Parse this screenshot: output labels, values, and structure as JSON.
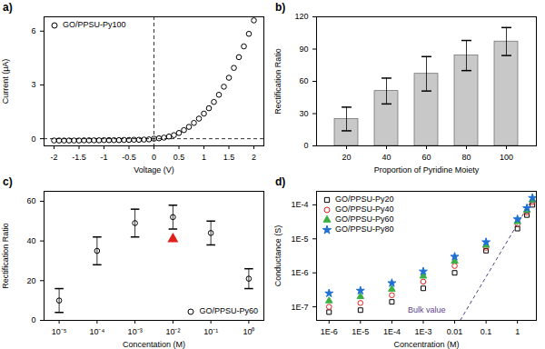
{
  "chart_data": [
    {
      "type": "scatter",
      "title": "a)",
      "x_label": "Voltage (V)",
      "y_label": "Current (μA)",
      "x": [
        -2,
        -1.9,
        -1.8,
        -1.7,
        -1.6,
        -1.5,
        -1.4,
        -1.3,
        -1.2,
        -1.1,
        -1,
        -0.9,
        -0.8,
        -0.7,
        -0.6,
        -0.5,
        -0.4,
        -0.3,
        -0.2,
        -0.1,
        0,
        0.1,
        0.2,
        0.3,
        0.4,
        0.5,
        0.6,
        0.7,
        0.8,
        0.9,
        1,
        1.1,
        1.2,
        1.3,
        1.4,
        1.5,
        1.6,
        1.7,
        1.8,
        1.9,
        2
      ],
      "series": [
        {
          "name": "GO/PPSU-Py100",
          "color": "#000000",
          "marker": "circle",
          "values": [
            -0.1,
            -0.1,
            -0.1,
            -0.1,
            -0.1,
            -0.1,
            -0.09,
            -0.09,
            -0.09,
            -0.09,
            -0.08,
            -0.08,
            -0.08,
            -0.08,
            -0.07,
            -0.07,
            -0.06,
            -0.06,
            -0.05,
            -0.04,
            0,
            0.02,
            0.06,
            0.12,
            0.2,
            0.32,
            0.48,
            0.66,
            0.88,
            1.12,
            1.4,
            1.7,
            2.05,
            2.45,
            2.9,
            3.4,
            3.95,
            4.55,
            5.15,
            5.85,
            6.6
          ]
        }
      ],
      "reference_lines": [
        {
          "axis": "x",
          "value": 0,
          "line_style": "dashed"
        },
        {
          "axis": "y",
          "value": 0,
          "line_style": "dashed"
        }
      ],
      "xlim": [
        -2.2,
        2.2
      ],
      "xticks": [
        -2,
        -1.5,
        -1,
        -0.5,
        0,
        0.5,
        1,
        1.5,
        2
      ],
      "ylim": [
        -0.4,
        6.8
      ],
      "yticks": [
        0,
        3,
        6
      ],
      "legend": "top-left"
    },
    {
      "type": "bar",
      "title": "b)",
      "x_label": "Proportion of Pyridine Moiety",
      "y_label": "Rectification Ratio",
      "categories": [
        "20",
        "40",
        "60",
        "80",
        "100"
      ],
      "values": [
        25,
        51,
        67,
        84,
        97
      ],
      "errors": [
        11,
        12,
        16,
        14,
        13
      ],
      "color": "#c8c8c8",
      "ylim": [
        0,
        120
      ],
      "yticks": [
        0,
        30,
        60,
        90,
        120
      ]
    },
    {
      "type": "scatter",
      "title": "c)",
      "x_label": "Concentation (M)",
      "y_label": "Rectification Ratio",
      "log": "x",
      "x": [
        1e-05,
        0.0001,
        0.001,
        0.01,
        0.1,
        1
      ],
      "series": [
        {
          "name": "GO/PPSU-Py60",
          "color": "#000000",
          "marker": "circle",
          "values": [
            10,
            35,
            49,
            52,
            44,
            21
          ],
          "errors": [
            6,
            7,
            7,
            6,
            6,
            5
          ]
        }
      ],
      "highlight": {
        "x": 0.01,
        "y": 41,
        "color": "#e0201b",
        "marker": "triangle"
      },
      "xlim": [
        4e-06,
        2.5
      ],
      "xticks": [
        {
          "value": 1e-05,
          "label": "10⁻⁵"
        },
        {
          "value": 0.0001,
          "label": "10⁻⁴"
        },
        {
          "value": 0.001,
          "label": "10⁻³"
        },
        {
          "value": 0.01,
          "label": "10⁻²"
        },
        {
          "value": 0.1,
          "label": "10⁻¹"
        },
        {
          "value": 1,
          "label": "10⁰"
        }
      ],
      "ylim": [
        0,
        65
      ],
      "yticks": [
        0,
        20,
        40,
        60
      ],
      "legend": "bottom-right"
    },
    {
      "type": "scatter",
      "title": "d)",
      "x_label": "Concentration (M)",
      "y_label": "Conductance (S)",
      "log": true,
      "x": [
        1e-06,
        1e-05,
        0.0001,
        0.001,
        0.01,
        0.1,
        1,
        2,
        3
      ],
      "series": [
        {
          "name": "GO/PPSU-Py20",
          "color": "#000000",
          "marker": "square",
          "values": [
            7e-08,
            8e-08,
            1.4e-07,
            3.5e-07,
            1e-06,
            4.5e-06,
            2e-05,
            5e-05,
            0.0001
          ]
        },
        {
          "name": "GO/PPSU-Py40",
          "color": "#e0201b",
          "marker": "circle",
          "values": [
            1e-07,
            1.3e-07,
            2.2e-07,
            5.5e-07,
            1.6e-06,
            5.5e-06,
            2.7e-05,
            6e-05,
            0.00012
          ]
        },
        {
          "name": "GO/PPSU-Py60",
          "color": "#3cb043",
          "marker": "triangle",
          "values": [
            1.5e-07,
            2e-07,
            3.3e-07,
            8e-07,
            2.2e-06,
            6.5e-06,
            3.2e-05,
            7e-05,
            0.00014
          ]
        },
        {
          "name": "GO/PPSU-Py80",
          "color": "#1f6fd4",
          "marker": "star",
          "values": [
            2.5e-07,
            3e-07,
            5e-07,
            1.1e-06,
            3e-06,
            8e-06,
            3.8e-05,
            8e-05,
            0.00016
          ]
        }
      ],
      "reference_line": {
        "label": "Bulk value",
        "x": [
          0.015,
          3
        ],
        "y": [
          4e-08,
          0.00015
        ],
        "color": "#5b3f8c",
        "line_style": "dashed"
      },
      "xlim": [
        4e-07,
        4
      ],
      "xticks": [
        {
          "value": 1e-06,
          "label": "1E-6"
        },
        {
          "value": 1e-05,
          "label": "1E-5"
        },
        {
          "value": 0.0001,
          "label": "1E-4"
        },
        {
          "value": 0.001,
          "label": "1E-3"
        },
        0.01,
        0.1,
        1
      ],
      "ylim": [
        4e-08,
        0.00025
      ],
      "yticks": [
        {
          "value": 1e-07,
          "label": "1E-7"
        },
        {
          "value": 1e-06,
          "label": "1E-6"
        },
        {
          "value": 1e-05,
          "label": "1E-5"
        },
        {
          "value": 0.0001,
          "label": "1E-4"
        }
      ],
      "legend": "top-left"
    }
  ]
}
